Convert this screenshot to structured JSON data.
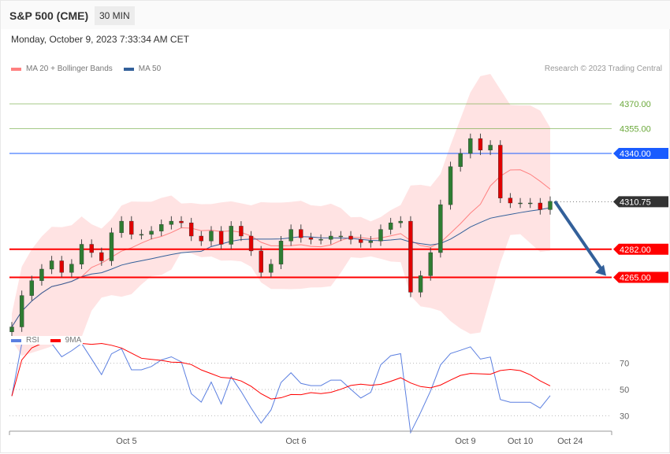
{
  "header": {
    "title": "S&P 500 (CME)",
    "timeframe": "30 MIN",
    "datetime": "Monday, October 9, 2023 7:33:34 AM CET"
  },
  "legend": {
    "ma20": "MA 20 + Bollinger Bands",
    "ma50": "MA 50",
    "credit": "Research © 2023 Trading Central",
    "rsi": "RSI",
    "rsi_ma": "9MA"
  },
  "colors": {
    "ma20": "#ff8080",
    "ma50": "#33609a",
    "band": "#ffe0e0",
    "bull": "#2e7d32",
    "bear": "#e00000",
    "support": "#ff0000",
    "pivot": "#1a5cff",
    "resistance": "#6aa839",
    "last": "#333333",
    "arrow": "#33609a",
    "rsi": "#5b7fe0",
    "rsi_ma": "#ff0000"
  },
  "chart_data": {
    "type": "candlestick",
    "instrument": "S&P 500 (CME)",
    "interval": "30 MIN",
    "ylim": [
      4225,
      4380
    ],
    "closes": [
      4235,
      4254,
      4263,
      4270,
      4275,
      4268,
      4273,
      4285,
      4280,
      4275,
      4292,
      4299,
      4291,
      4291,
      4293,
      4297,
      4299,
      4298,
      4290,
      4287,
      4293,
      4285,
      4296,
      4290,
      4281,
      4268,
      4273,
      4287,
      4294,
      4289,
      4288,
      4288,
      4290,
      4290,
      4288,
      4286,
      4287,
      4294,
      4298,
      4299,
      4256,
      4266,
      4280,
      4309,
      4332,
      4340,
      4349,
      4342,
      4345,
      4313,
      4310,
      4310,
      4310,
      4306,
      4311
    ],
    "x_ticks": [
      {
        "label": "Oct 5",
        "index": 11.5
      },
      {
        "label": "Oct 6",
        "index": 28.5
      },
      {
        "label": "Oct 9",
        "index": 45.5
      },
      {
        "label": "Oct 10",
        "index": 51
      },
      {
        "label": "Oct 24",
        "index": 56
      }
    ],
    "levels": [
      {
        "label": "4370.00",
        "value": 4370,
        "kind": "resistance"
      },
      {
        "label": "4355.00",
        "value": 4355,
        "kind": "resistance"
      },
      {
        "label": "4340.00",
        "value": 4340,
        "kind": "pivot"
      },
      {
        "label": "4310.75",
        "value": 4310.75,
        "kind": "last"
      },
      {
        "label": "4282.00",
        "value": 4282,
        "kind": "support"
      },
      {
        "label": "4265.00",
        "value": 4265,
        "kind": "support"
      }
    ],
    "forecast_arrow": {
      "from": 4311,
      "to": 4265,
      "direction": "down"
    },
    "rsi": {
      "levels": [
        {
          "label": "70",
          "value": 70
        },
        {
          "label": "50",
          "value": 50
        },
        {
          "label": "30",
          "value": 30
        }
      ],
      "ylim": [
        15,
        85
      ]
    }
  }
}
